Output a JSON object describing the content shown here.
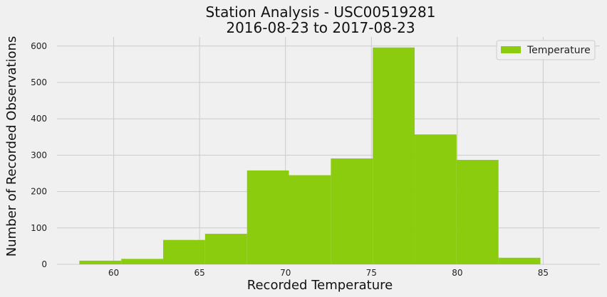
{
  "chart_data": {
    "type": "bar",
    "subtype": "histogram",
    "title": "Station Analysis - USC00519281",
    "subtitle": "2016-08-23 to 2017-08-23",
    "xlabel": "Recorded Temperature",
    "ylabel": "Number of Recorded Observations",
    "xlim": [
      56.7,
      88.3
    ],
    "ylim": [
      0,
      625
    ],
    "xticks": [
      60,
      65,
      70,
      75,
      80,
      85
    ],
    "yticks": [
      0,
      100,
      200,
      300,
      400,
      500,
      600
    ],
    "grid": true,
    "legend_position": "top-right",
    "series": [
      {
        "name": "Temperature",
        "color": "#8bcc0e",
        "bins": [
          {
            "x0": 58.0,
            "x1": 60.44,
            "count": 10
          },
          {
            "x0": 60.44,
            "x1": 62.88,
            "count": 15
          },
          {
            "x0": 62.88,
            "x1": 65.32,
            "count": 67
          },
          {
            "x0": 65.32,
            "x1": 67.76,
            "count": 84
          },
          {
            "x0": 67.76,
            "x1": 70.2,
            "count": 258
          },
          {
            "x0": 70.2,
            "x1": 72.64,
            "count": 245
          },
          {
            "x0": 72.64,
            "x1": 75.08,
            "count": 291
          },
          {
            "x0": 75.08,
            "x1": 77.52,
            "count": 596
          },
          {
            "x0": 77.52,
            "x1": 79.96,
            "count": 357
          },
          {
            "x0": 79.96,
            "x1": 82.4,
            "count": 287
          },
          {
            "x0": 82.4,
            "x1": 84.84,
            "count": 18
          }
        ]
      }
    ]
  }
}
